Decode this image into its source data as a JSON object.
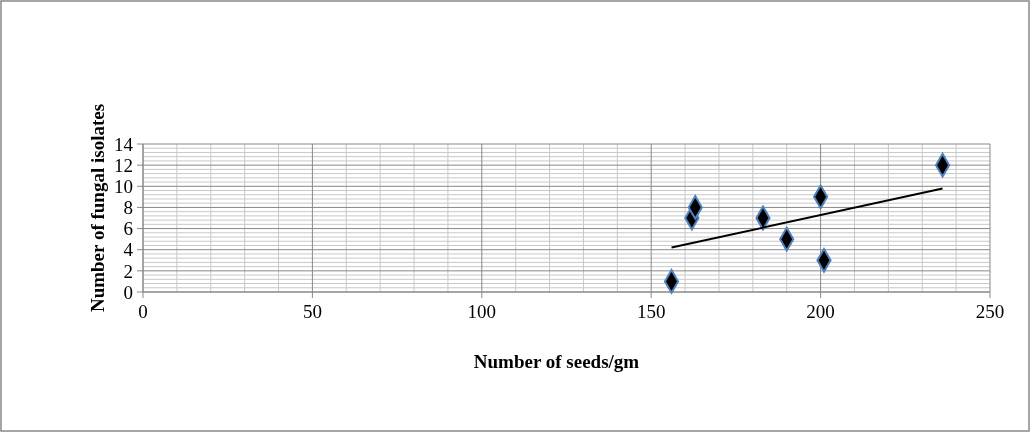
{
  "chart_data": {
    "type": "scatter",
    "xlabel": "Number of seeds/gm",
    "ylabel": "Number of fungal isolates",
    "xlim": [
      0,
      250
    ],
    "xticks": [
      0,
      50,
      100,
      150,
      200,
      250
    ],
    "ylim": [
      0,
      14
    ],
    "yticks": [
      0,
      2,
      4,
      6,
      8,
      10,
      12,
      14
    ],
    "grid": true,
    "marker": "diamond",
    "series": [
      {
        "color": "#000000",
        "x": [
          156,
          162,
          163,
          183,
          190,
          201,
          200,
          236
        ],
        "values": [
          1,
          7,
          8,
          7,
          5,
          3,
          9,
          12
        ]
      },
      {
        "type": "line",
        "color": "#000000",
        "marker": "none",
        "x": [
          156,
          236
        ],
        "values": [
          4.2,
          9.8
        ]
      }
    ]
  }
}
